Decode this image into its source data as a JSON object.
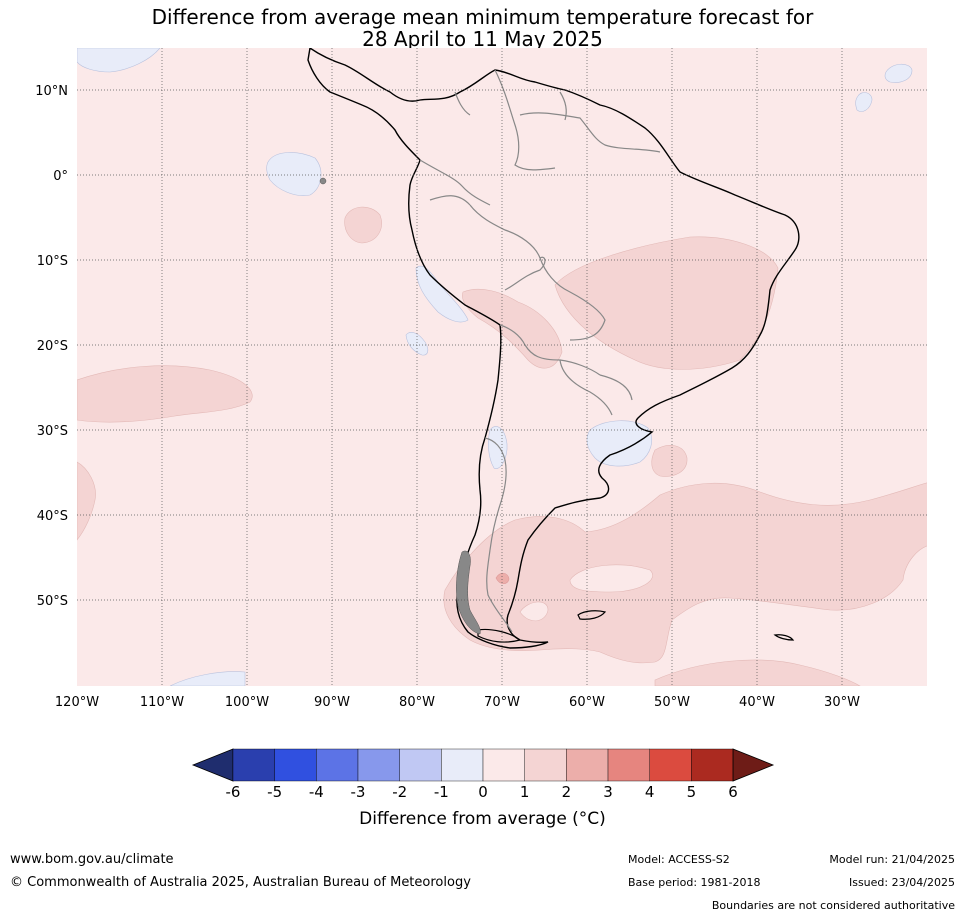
{
  "title": {
    "line1": "Difference from average mean minimum temperature forecast for",
    "line2": "28 April to 11 May 2025"
  },
  "map": {
    "latitude_labels": [
      "10°N",
      "0°",
      "10°S",
      "20°S",
      "30°S",
      "40°S",
      "50°S"
    ],
    "longitude_labels": [
      "120°W",
      "110°W",
      "100°W",
      "90°W",
      "80°W",
      "70°W",
      "60°W",
      "50°W",
      "40°W",
      "30°W"
    ],
    "colors": {
      "anom_0_1": "#fbe9e9",
      "anom_1_2": "#f4d4d3",
      "anom_m1_0": "#e8ecf9",
      "coast": "#000000",
      "border": "#888888"
    }
  },
  "colorbar": {
    "ticks": [
      "-6",
      "-5",
      "-4",
      "-3",
      "-2",
      "-1",
      "0",
      "1",
      "2",
      "3",
      "4",
      "5",
      "6"
    ],
    "colors": [
      "#1f2d6e",
      "#2a3fae",
      "#3050e0",
      "#5c73e6",
      "#8798ec",
      "#c0c8f3",
      "#e8ecf9",
      "#fbe9e9",
      "#f4d4d3",
      "#ecaeaa",
      "#e6857f",
      "#db4b3f",
      "#ab2a20",
      "#6e1c17"
    ],
    "label": "Difference from average (°C)"
  },
  "footer": {
    "website": "www.bom.gov.au/climate",
    "copyright": "© Commonwealth of Australia 2025, Australian Bureau of Meteorology",
    "model": "Model: ACCESS-S2",
    "base_period": "Base period: 1981-2018",
    "model_run": "Model run: 21/04/2025",
    "issued": "Issued: 23/04/2025",
    "disclaimer": "Boundaries are not considered authoritative"
  }
}
